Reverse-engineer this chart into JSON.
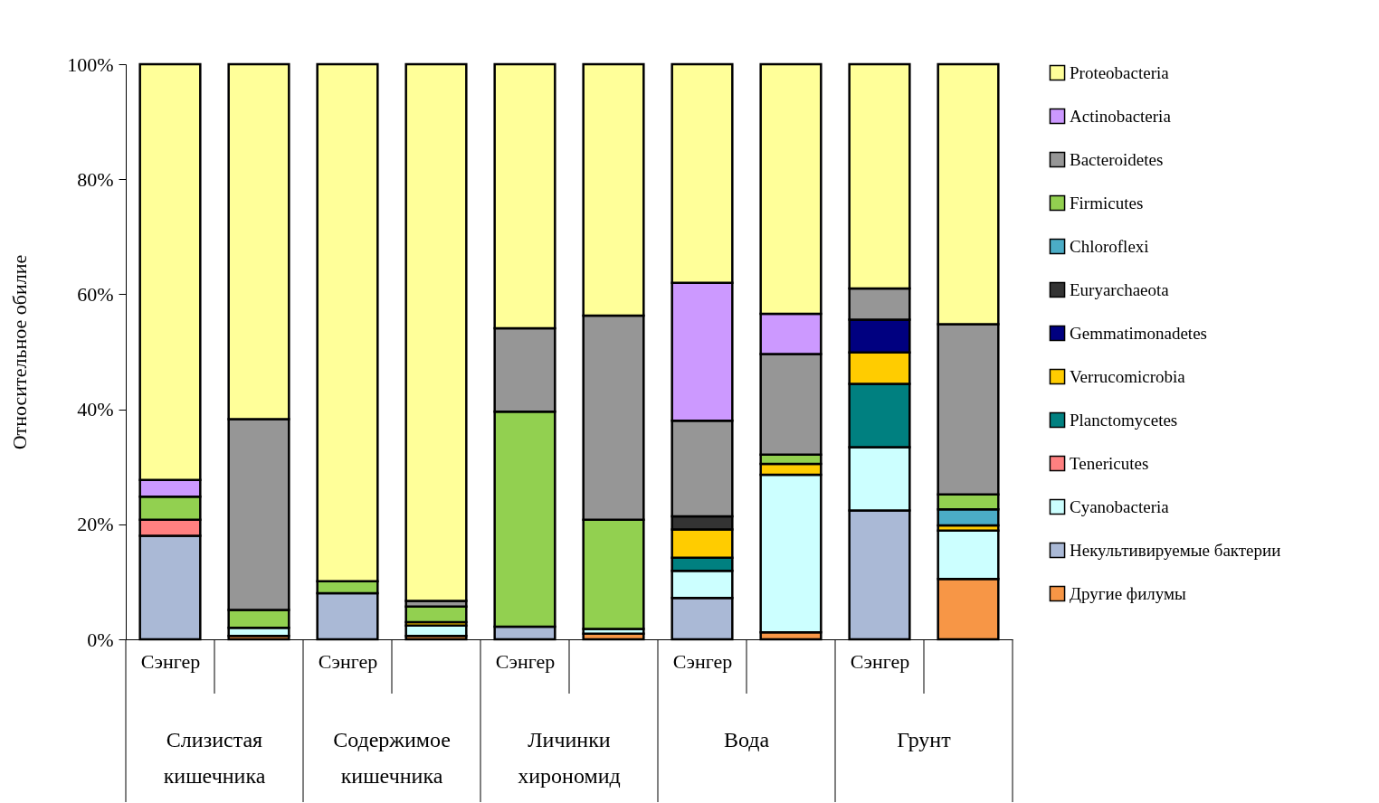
{
  "chart_data": {
    "type": "bar",
    "stacked": true,
    "ylabel": "Относительное обилие",
    "categories": [
      "Сэнгер",
      null,
      "Сэнгер",
      null,
      "Сэнгер",
      null,
      "Сэнгер",
      null,
      "Сэнгер",
      null
    ],
    "ylim": [
      0,
      100
    ],
    "yticks": [
      {
        "value": 0,
        "label": "0%"
      },
      {
        "value": 20,
        "label": "20%"
      },
      {
        "value": 40,
        "label": "40%"
      },
      {
        "value": 60,
        "label": "60%"
      },
      {
        "value": 80,
        "label": "80%"
      },
      {
        "value": 100,
        "label": "100%"
      }
    ],
    "grid": false,
    "legend": "right",
    "annotations": [
      "Слизистая кишечника",
      "Содержимое кишечника",
      "Личинки хирономид",
      "Вода",
      "Грунт"
    ],
    "series": [
      {
        "name": "Другие филумы",
        "color": "#f79646",
        "values": [
          null,
          0.6,
          null,
          0.6,
          null,
          1.0,
          null,
          1.2,
          null,
          10.5
        ]
      },
      {
        "name": "Некультивируемые бактерии",
        "color": "#aab9d6",
        "values": [
          18.0,
          null,
          8.0,
          null,
          2.2,
          null,
          7.2,
          null,
          22.4,
          null
        ]
      },
      {
        "name": "Cyanobacteria",
        "color": "#ccffff",
        "values": [
          null,
          1.4,
          null,
          1.8,
          null,
          0.8,
          4.7,
          27.4,
          11.0,
          8.4
        ]
      },
      {
        "name": "Tenericutes",
        "color": "#ff8080",
        "values": [
          2.8,
          null,
          null,
          null,
          null,
          null,
          null,
          null,
          null,
          null
        ]
      },
      {
        "name": "Planctomycetes",
        "color": "#008080",
        "values": [
          null,
          null,
          null,
          null,
          null,
          null,
          2.3,
          null,
          11.0,
          null
        ]
      },
      {
        "name": "Verrucomicrobia",
        "color": "#ffcc00",
        "values": [
          null,
          null,
          null,
          0.6,
          null,
          null,
          4.9,
          1.9,
          5.5,
          0.9
        ]
      },
      {
        "name": "Gemmatimonadetes",
        "color": "#000080",
        "values": [
          null,
          null,
          null,
          null,
          null,
          null,
          null,
          null,
          5.7,
          null
        ]
      },
      {
        "name": "Euryarchaeota",
        "color": "#333333",
        "values": [
          null,
          null,
          null,
          null,
          null,
          null,
          2.3,
          null,
          null,
          null
        ]
      },
      {
        "name": "Chloroflexi",
        "color": "#4bacc6",
        "values": [
          null,
          null,
          null,
          null,
          null,
          null,
          null,
          null,
          null,
          2.8
        ]
      },
      {
        "name": "Firmicutes",
        "color": "#92d050",
        "values": [
          4.0,
          3.1,
          2.1,
          2.7,
          37.4,
          19.0,
          null,
          1.6,
          null,
          2.6
        ]
      },
      {
        "name": "Bacteroidetes",
        "color": "#969696",
        "values": [
          null,
          33.2,
          null,
          1.0,
          14.5,
          35.5,
          16.6,
          17.5,
          5.4,
          29.6
        ]
      },
      {
        "name": "Actinobacteria",
        "color": "#cc99ff",
        "values": [
          2.9,
          null,
          null,
          null,
          null,
          null,
          24.0,
          7.0,
          null,
          null
        ]
      },
      {
        "name": "Proteobacteria",
        "color": "#ffff99",
        "values": [
          72.3,
          61.7,
          89.9,
          93.3,
          45.9,
          43.7,
          38.0,
          43.4,
          39.0,
          45.2
        ]
      }
    ]
  }
}
